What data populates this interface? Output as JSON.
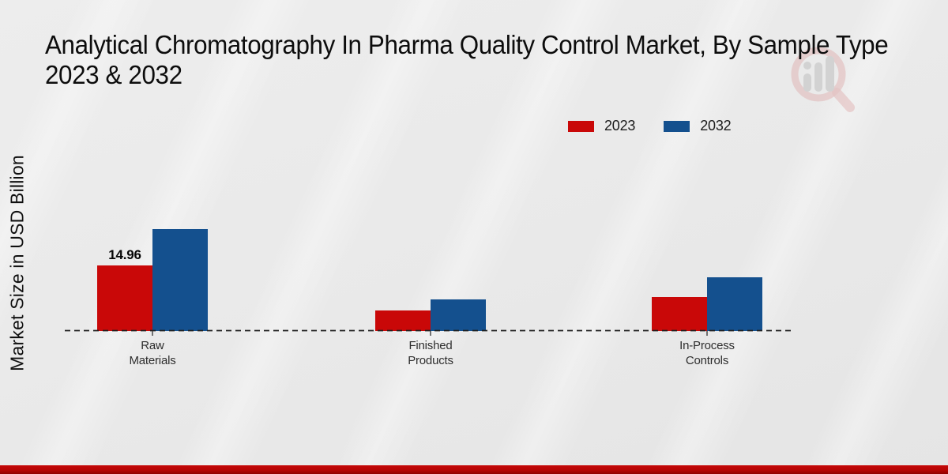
{
  "title": {
    "line1": "Analytical Chromatography In Pharma Quality Control Market, By Sample Type",
    "line2": "2023 & 2032"
  },
  "y_axis_label": "Market Size in USD Billion",
  "legend": [
    {
      "label": "2023",
      "color": "#c90808"
    },
    {
      "label": "2032",
      "color": "#14508e"
    }
  ],
  "watermark_icon": "magnifier-bar-chart-logo",
  "footer": {
    "color": "#b40404"
  },
  "chart_data": {
    "type": "bar",
    "title": "Analytical Chromatography In Pharma Quality Control Market, By Sample Type 2023 & 2032",
    "xlabel": "",
    "ylabel": "Market Size in USD Billion",
    "categories": [
      "Raw\nMaterials",
      "Finished\nProducts",
      "In-Process\nControls"
    ],
    "series": [
      {
        "name": "2023",
        "color": "#c90808",
        "values": [
          14.96,
          4.7,
          7.8
        ]
      },
      {
        "name": "2032",
        "color": "#14508e",
        "values": [
          23.3,
          7.2,
          12.3
        ]
      }
    ],
    "bar_labels": [
      [
        "14.96",
        "",
        ""
      ],
      [
        "",
        "",
        ""
      ]
    ],
    "legend_position": "top-right",
    "grid": false,
    "y_axis_ticks_visible": false,
    "baseline_style": "dashed"
  }
}
